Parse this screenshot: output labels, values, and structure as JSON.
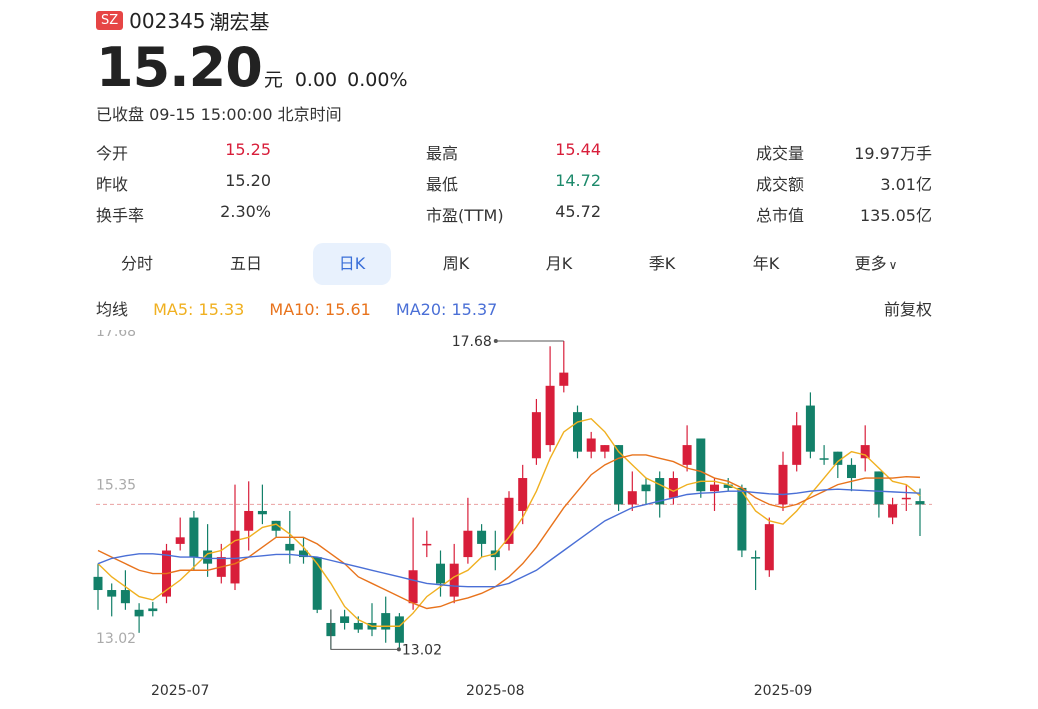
{
  "header": {
    "exchange": "SZ",
    "code": "002345",
    "name": "潮宏基"
  },
  "quote": {
    "price": "15.20",
    "unit": "元",
    "change": "0.00",
    "change_pct": "0.00%",
    "status": "已收盘 09-15 15:00:00 北京时间"
  },
  "stats": [
    {
      "label": "今开",
      "value": "15.25",
      "color": "red"
    },
    {
      "label": "最高",
      "value": "15.44",
      "color": "red"
    },
    {
      "label": "成交量",
      "value": "19.97万手",
      "color": "dark"
    },
    {
      "label": "昨收",
      "value": "15.20",
      "color": "dark"
    },
    {
      "label": "最低",
      "value": "14.72",
      "color": "green"
    },
    {
      "label": "成交额",
      "value": "3.01亿",
      "color": "dark"
    },
    {
      "label": "换手率",
      "value": "2.30%",
      "color": "dark"
    },
    {
      "label": "市盈(TTM)",
      "value": "45.72",
      "color": "dark"
    },
    {
      "label": "总市值",
      "value": "135.05亿",
      "color": "dark"
    }
  ],
  "tabs": [
    "分时",
    "五日",
    "日K",
    "周K",
    "月K",
    "季K",
    "年K",
    "更多"
  ],
  "active_tab": "日K",
  "ma": {
    "label": "均线",
    "ma5": "MA5: 15.33",
    "ma10": "MA10: 15.61",
    "ma20": "MA20: 15.37",
    "colors": {
      "ma5": "#f0b020",
      "ma10": "#e8731c",
      "ma20": "#4a6fd6"
    }
  },
  "adjust": "前复权",
  "colors": {
    "up": "#d81e3a",
    "down": "#138069",
    "accent": "#3a6fd8"
  },
  "chart_data": {
    "type": "candlestick",
    "ylim": [
      13.02,
      17.68
    ],
    "y_ticks": [
      "17.68",
      "15.35",
      "13.02"
    ],
    "x_ticks": [
      {
        "index": 6,
        "label": "2025-07"
      },
      {
        "index": 29,
        "label": "2025-08"
      },
      {
        "index": 50,
        "label": "2025-09"
      }
    ],
    "max_label": "17.68",
    "min_label": "13.02",
    "reference_price": 15.2,
    "candles": [
      [
        14.1,
        13.9,
        14.3,
        13.6
      ],
      [
        13.9,
        13.8,
        14.0,
        13.5
      ],
      [
        13.9,
        13.7,
        14.2,
        13.6
      ],
      [
        13.6,
        13.5,
        13.7,
        13.25
      ],
      [
        13.62,
        13.58,
        13.72,
        13.5
      ],
      [
        13.8,
        14.5,
        14.6,
        13.7
      ],
      [
        14.6,
        14.7,
        15.0,
        14.5
      ],
      [
        15.0,
        14.4,
        15.1,
        14.2
      ],
      [
        14.5,
        14.3,
        14.9,
        14.1
      ],
      [
        14.1,
        14.4,
        14.6,
        14.0
      ],
      [
        14.0,
        14.8,
        15.5,
        13.9
      ],
      [
        14.8,
        15.1,
        15.55,
        14.5
      ],
      [
        15.1,
        15.05,
        15.5,
        14.9
      ],
      [
        14.95,
        14.8,
        14.95,
        14.7
      ],
      [
        14.6,
        14.5,
        15.1,
        14.3
      ],
      [
        14.5,
        14.4,
        14.7,
        14.3
      ],
      [
        14.4,
        13.6,
        14.4,
        13.55
      ],
      [
        13.4,
        13.2,
        13.6,
        13.0
      ],
      [
        13.5,
        13.4,
        13.6,
        13.3
      ],
      [
        13.4,
        13.3,
        13.5,
        13.25
      ],
      [
        13.4,
        13.3,
        13.7,
        13.2
      ],
      [
        13.55,
        13.3,
        13.8,
        13.1
      ],
      [
        13.5,
        13.1,
        13.55,
        13.02
      ],
      [
        13.7,
        14.2,
        15.0,
        13.6
      ],
      [
        14.6,
        14.6,
        14.8,
        14.4
      ],
      [
        14.3,
        14.0,
        14.5,
        13.8
      ],
      [
        13.8,
        14.3,
        14.6,
        13.7
      ],
      [
        14.4,
        14.8,
        15.3,
        14.3
      ],
      [
        14.8,
        14.6,
        14.9,
        14.4
      ],
      [
        14.5,
        14.4,
        14.8,
        14.2
      ],
      [
        14.6,
        15.3,
        15.4,
        14.5
      ],
      [
        15.1,
        15.6,
        15.8,
        14.9
      ],
      [
        15.9,
        16.6,
        16.8,
        15.8
      ],
      [
        16.1,
        17.0,
        17.6,
        16.0
      ],
      [
        17.0,
        17.2,
        17.68,
        16.9
      ],
      [
        16.6,
        16.0,
        16.7,
        15.9
      ],
      [
        16.0,
        16.2,
        16.3,
        15.9
      ],
      [
        16.0,
        16.1,
        16.1,
        15.9
      ],
      [
        16.1,
        15.2,
        16.1,
        15.1
      ],
      [
        15.2,
        15.4,
        15.7,
        15.1
      ],
      [
        15.5,
        15.4,
        15.6,
        15.2
      ],
      [
        15.6,
        15.2,
        15.7,
        15.0
      ],
      [
        15.3,
        15.6,
        15.7,
        15.2
      ],
      [
        15.8,
        16.1,
        16.4,
        15.7
      ],
      [
        16.2,
        15.4,
        16.2,
        15.3
      ],
      [
        15.4,
        15.5,
        15.6,
        15.1
      ],
      [
        15.5,
        15.45,
        15.6,
        15.4
      ],
      [
        15.45,
        14.5,
        15.5,
        14.4
      ],
      [
        14.4,
        14.4,
        14.5,
        13.9
      ],
      [
        14.2,
        14.9,
        15.0,
        14.1
      ],
      [
        15.2,
        15.8,
        16.0,
        15.1
      ],
      [
        15.8,
        16.4,
        16.6,
        15.7
      ],
      [
        16.7,
        16.0,
        16.9,
        15.9
      ],
      [
        15.9,
        15.9,
        16.1,
        15.8
      ],
      [
        16.0,
        15.8,
        16.0,
        15.6
      ],
      [
        15.8,
        15.6,
        15.9,
        15.4
      ],
      [
        15.9,
        16.1,
        16.4,
        15.7
      ],
      [
        15.7,
        15.2,
        15.7,
        15.0
      ],
      [
        15.0,
        15.2,
        15.3,
        14.9
      ],
      [
        15.3,
        15.3,
        15.5,
        15.1
      ],
      [
        15.25,
        15.2,
        15.44,
        14.72
      ]
    ],
    "series": [
      {
        "name": "MA5",
        "values": [
          14.3,
          14.1,
          13.95,
          13.8,
          13.75,
          13.9,
          14.05,
          14.25,
          14.45,
          14.5,
          14.65,
          14.7,
          14.85,
          14.9,
          14.75,
          14.55,
          14.3,
          14.0,
          13.65,
          13.45,
          13.35,
          13.35,
          13.35,
          13.55,
          13.8,
          13.95,
          14.1,
          14.2,
          14.4,
          14.45,
          14.7,
          15.0,
          15.4,
          15.9,
          16.3,
          16.45,
          16.5,
          16.3,
          16.0,
          15.8,
          15.6,
          15.5,
          15.4,
          15.5,
          15.55,
          15.55,
          15.5,
          15.4,
          15.1,
          14.95,
          14.9,
          15.1,
          15.35,
          15.6,
          15.85,
          16.0,
          15.95,
          15.75,
          15.55,
          15.5,
          15.33
        ]
      },
      {
        "name": "MA10",
        "values": [
          14.5,
          14.4,
          14.3,
          14.2,
          14.15,
          14.15,
          14.2,
          14.2,
          14.2,
          14.25,
          14.3,
          14.4,
          14.55,
          14.7,
          14.7,
          14.7,
          14.6,
          14.45,
          14.3,
          14.1,
          14.0,
          13.9,
          13.8,
          13.7,
          13.62,
          13.65,
          13.73,
          13.78,
          13.85,
          13.95,
          14.1,
          14.3,
          14.55,
          14.85,
          15.15,
          15.4,
          15.65,
          15.8,
          15.9,
          15.95,
          15.95,
          15.9,
          15.85,
          15.75,
          15.7,
          15.6,
          15.55,
          15.45,
          15.3,
          15.2,
          15.15,
          15.2,
          15.3,
          15.4,
          15.5,
          15.55,
          15.6,
          15.6,
          15.6,
          15.62,
          15.61
        ]
      },
      {
        "name": "MA20",
        "values": [
          14.3,
          14.38,
          14.42,
          14.45,
          14.45,
          14.43,
          14.4,
          14.4,
          14.38,
          14.38,
          14.38,
          14.4,
          14.42,
          14.44,
          14.44,
          14.42,
          14.4,
          14.35,
          14.3,
          14.25,
          14.2,
          14.15,
          14.1,
          14.05,
          14.0,
          13.98,
          13.96,
          13.95,
          13.95,
          13.95,
          14.0,
          14.1,
          14.2,
          14.35,
          14.5,
          14.65,
          14.8,
          14.95,
          15.05,
          15.15,
          15.2,
          15.25,
          15.3,
          15.35,
          15.37,
          15.38,
          15.4,
          15.4,
          15.38,
          15.36,
          15.35,
          15.37,
          15.4,
          15.42,
          15.43,
          15.42,
          15.41,
          15.4,
          15.39,
          15.38,
          15.37
        ]
      }
    ]
  }
}
